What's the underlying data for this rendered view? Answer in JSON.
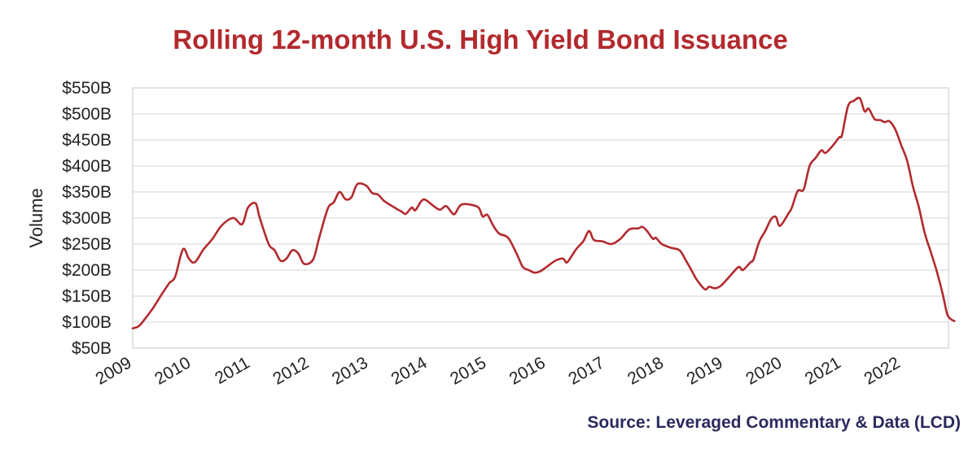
{
  "chart_data": {
    "type": "line",
    "title": "Rolling 12-month U.S. High Yield Bond Issuance",
    "ylabel": "Volume",
    "xlabel": "",
    "source": "Source: Leveraged Commentary & Data (LCD)",
    "ylim": [
      50,
      550
    ],
    "xlim": [
      2009,
      2022.8
    ],
    "y_ticks": [
      50,
      100,
      150,
      200,
      250,
      300,
      350,
      400,
      450,
      500,
      550
    ],
    "y_tick_labels": [
      "$50B",
      "$100B",
      "$150B",
      "$200B",
      "$250B",
      "$300B",
      "$350B",
      "$400B",
      "$450B",
      "$500B",
      "$550B"
    ],
    "x_ticks": [
      2009,
      2010,
      2011,
      2012,
      2013,
      2014,
      2015,
      2016,
      2017,
      2018,
      2019,
      2020,
      2021,
      2022
    ],
    "x_tick_labels": [
      "2009",
      "2010",
      "2011",
      "2012",
      "2013",
      "2014",
      "2015",
      "2016",
      "2017",
      "2018",
      "2019",
      "2020",
      "2021",
      "2022"
    ],
    "grid": "horizontal",
    "line_color": "#b22a2e",
    "series": [
      {
        "values": [
          [
            2009.0,
            88
          ],
          [
            2009.1,
            92
          ],
          [
            2009.2,
            105
          ],
          [
            2009.35,
            128
          ],
          [
            2009.5,
            155
          ],
          [
            2009.62,
            175
          ],
          [
            2009.72,
            188
          ],
          [
            2009.85,
            240
          ],
          [
            2009.95,
            222
          ],
          [
            2010.05,
            215
          ],
          [
            2010.2,
            240
          ],
          [
            2010.35,
            260
          ],
          [
            2010.5,
            285
          ],
          [
            2010.7,
            300
          ],
          [
            2010.85,
            288
          ],
          [
            2010.95,
            320
          ],
          [
            2011.08,
            328
          ],
          [
            2011.15,
            300
          ],
          [
            2011.3,
            250
          ],
          [
            2011.4,
            238
          ],
          [
            2011.5,
            218
          ],
          [
            2011.6,
            222
          ],
          [
            2011.7,
            238
          ],
          [
            2011.8,
            232
          ],
          [
            2011.9,
            212
          ],
          [
            2012.05,
            220
          ],
          [
            2012.15,
            260
          ],
          [
            2012.3,
            318
          ],
          [
            2012.4,
            330
          ],
          [
            2012.5,
            350
          ],
          [
            2012.6,
            336
          ],
          [
            2012.7,
            340
          ],
          [
            2012.8,
            365
          ],
          [
            2012.95,
            362
          ],
          [
            2013.05,
            348
          ],
          [
            2013.15,
            345
          ],
          [
            2013.25,
            333
          ],
          [
            2013.4,
            322
          ],
          [
            2013.55,
            312
          ],
          [
            2013.62,
            308
          ],
          [
            2013.72,
            320
          ],
          [
            2013.78,
            315
          ],
          [
            2013.88,
            332
          ],
          [
            2013.95,
            335
          ],
          [
            2014.1,
            322
          ],
          [
            2014.2,
            316
          ],
          [
            2014.3,
            323
          ],
          [
            2014.4,
            310
          ],
          [
            2014.45,
            308
          ],
          [
            2014.55,
            325
          ],
          [
            2014.7,
            326
          ],
          [
            2014.85,
            320
          ],
          [
            2014.92,
            303
          ],
          [
            2015.0,
            306
          ],
          [
            2015.1,
            285
          ],
          [
            2015.2,
            270
          ],
          [
            2015.35,
            262
          ],
          [
            2015.5,
            230
          ],
          [
            2015.6,
            206
          ],
          [
            2015.7,
            200
          ],
          [
            2015.8,
            195
          ],
          [
            2015.9,
            198
          ],
          [
            2016.0,
            206
          ],
          [
            2016.15,
            218
          ],
          [
            2016.28,
            222
          ],
          [
            2016.35,
            215
          ],
          [
            2016.5,
            240
          ],
          [
            2016.62,
            255
          ],
          [
            2016.72,
            275
          ],
          [
            2016.8,
            258
          ],
          [
            2016.95,
            255
          ],
          [
            2017.1,
            250
          ],
          [
            2017.25,
            260
          ],
          [
            2017.4,
            278
          ],
          [
            2017.55,
            280
          ],
          [
            2017.62,
            283
          ],
          [
            2017.7,
            275
          ],
          [
            2017.8,
            260
          ],
          [
            2017.85,
            262
          ],
          [
            2017.95,
            250
          ],
          [
            2018.1,
            243
          ],
          [
            2018.25,
            238
          ],
          [
            2018.35,
            220
          ],
          [
            2018.45,
            200
          ],
          [
            2018.55,
            180
          ],
          [
            2018.68,
            163
          ],
          [
            2018.75,
            168
          ],
          [
            2018.85,
            165
          ],
          [
            2018.95,
            170
          ],
          [
            2019.1,
            188
          ],
          [
            2019.25,
            206
          ],
          [
            2019.32,
            200
          ],
          [
            2019.45,
            215
          ],
          [
            2019.5,
            220
          ],
          [
            2019.6,
            255
          ],
          [
            2019.7,
            275
          ],
          [
            2019.8,
            298
          ],
          [
            2019.88,
            302
          ],
          [
            2019.95,
            285
          ],
          [
            2020.1,
            310
          ],
          [
            2020.15,
            320
          ],
          [
            2020.25,
            352
          ],
          [
            2020.35,
            355
          ],
          [
            2020.45,
            400
          ],
          [
            2020.55,
            415
          ],
          [
            2020.65,
            430
          ],
          [
            2020.72,
            425
          ],
          [
            2020.85,
            440
          ],
          [
            2020.95,
            455
          ],
          [
            2021.0,
            460
          ],
          [
            2021.1,
            515
          ],
          [
            2021.2,
            525
          ],
          [
            2021.3,
            530
          ],
          [
            2021.38,
            505
          ],
          [
            2021.45,
            510
          ],
          [
            2021.55,
            490
          ],
          [
            2021.65,
            488
          ],
          [
            2021.72,
            484
          ],
          [
            2021.8,
            486
          ],
          [
            2021.9,
            470
          ],
          [
            2022.0,
            440
          ],
          [
            2022.1,
            410
          ],
          [
            2022.2,
            360
          ],
          [
            2022.3,
            320
          ],
          [
            2022.4,
            270
          ],
          [
            2022.5,
            235
          ],
          [
            2022.6,
            198
          ],
          [
            2022.7,
            155
          ],
          [
            2022.78,
            115
          ],
          [
            2022.85,
            105
          ],
          [
            2022.9,
            102
          ]
        ]
      }
    ]
  }
}
